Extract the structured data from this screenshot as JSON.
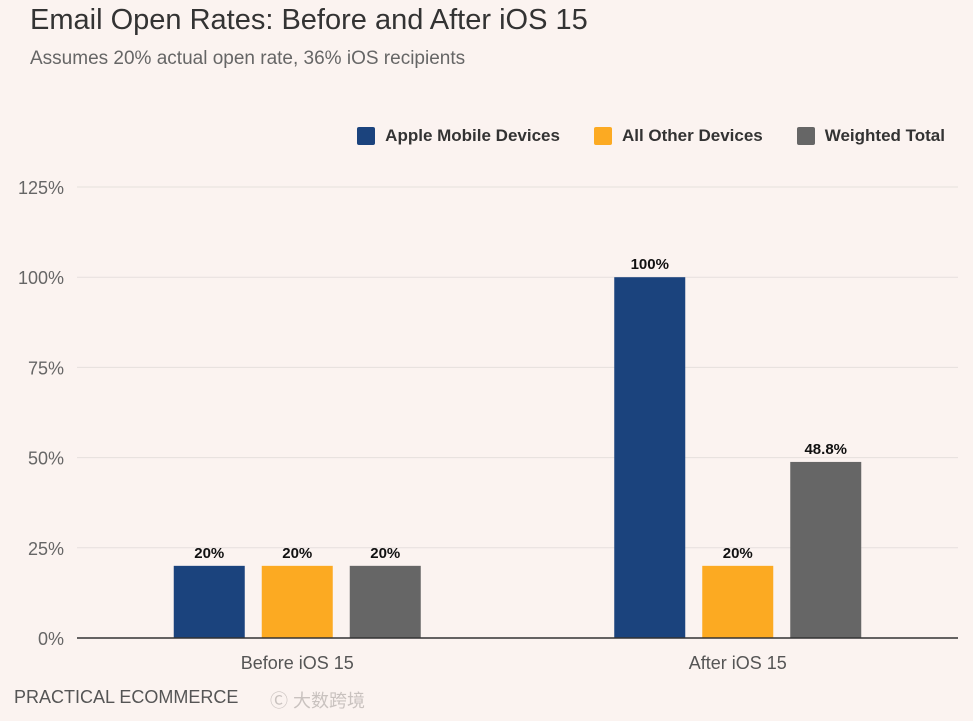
{
  "chart_data": {
    "type": "bar",
    "title": "Email Open Rates: Before and After iOS 15",
    "subtitle": "Assumes 20% actual open rate, 36% iOS recipients",
    "categories": [
      "Before iOS 15",
      "After iOS 15"
    ],
    "series": [
      {
        "name": "Apple Mobile Devices",
        "color": "#1b437d",
        "values": [
          20,
          100
        ],
        "labels": [
          "20%",
          "100%"
        ]
      },
      {
        "name": "All Other Devices",
        "color": "#fcaa22",
        "values": [
          20,
          20
        ],
        "labels": [
          "20%",
          "20%"
        ]
      },
      {
        "name": "Weighted Total",
        "color": "#666666",
        "values": [
          20,
          48.8
        ],
        "labels": [
          "20%",
          "48.8%"
        ]
      }
    ],
    "ylim": [
      0,
      125
    ],
    "yticks": [
      0,
      25,
      50,
      75,
      100,
      125
    ],
    "ytick_labels": [
      "0%",
      "25%",
      "50%",
      "75%",
      "100%",
      "125%"
    ],
    "grid": true,
    "legend": "top-right",
    "xlabel": "",
    "ylabel": ""
  },
  "source": "PRACTICAL ECOMMERCE",
  "watermark": "大数跨境"
}
